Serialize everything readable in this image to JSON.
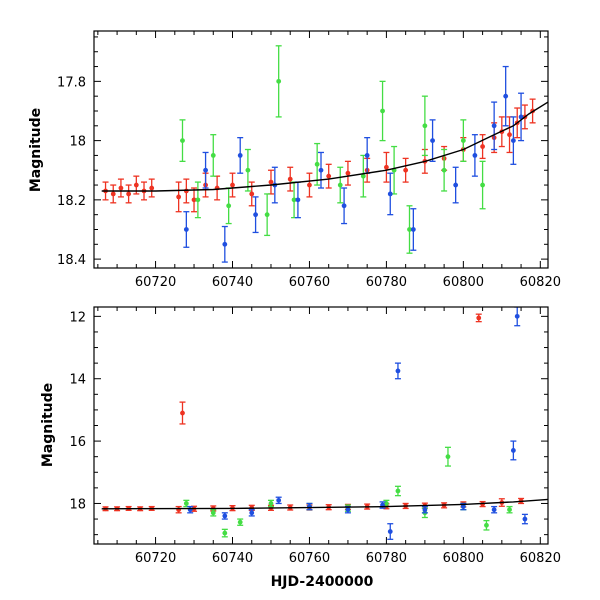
{
  "chart_data": [
    {
      "type": "scatter",
      "title": "",
      "xlabel": "",
      "ylabel": "Magnitude",
      "xlim": [
        60704,
        60822
      ],
      "ylim": [
        18.43,
        17.63
      ],
      "y_inverted": true,
      "xticks": [
        60720,
        60740,
        60760,
        60780,
        60800,
        60820
      ],
      "yticks": [
        17.8,
        18,
        18.2,
        18.4
      ],
      "ytick_labels": [
        "17.8",
        "18",
        "18.2",
        "18.4"
      ],
      "grid": false,
      "colors": {
        "red": "#ee3322",
        "green": "#44dd44",
        "blue": "#1f4fe0",
        "model": "#000000"
      },
      "model_curve": {
        "x": [
          60706,
          60720,
          60735,
          60750,
          60765,
          60780,
          60790,
          60800,
          60808,
          60813,
          60817,
          60822
        ],
        "y": [
          18.17,
          18.17,
          18.165,
          18.15,
          18.13,
          18.1,
          18.07,
          18.03,
          17.98,
          17.95,
          17.91,
          17.87
        ]
      },
      "series": [
        {
          "color": "red",
          "x": [
            60707,
            60709,
            60711,
            60713,
            60715,
            60717,
            60719,
            60726,
            60728,
            60730,
            60733,
            60736,
            60740,
            60745,
            60750,
            60755,
            60760,
            60765,
            60770,
            60775,
            60780,
            60785,
            60790,
            60795,
            60800,
            60805,
            60808,
            60810,
            60812,
            60814,
            60816,
            60818
          ],
          "y": [
            18.17,
            18.18,
            18.16,
            18.18,
            18.15,
            18.17,
            18.16,
            18.19,
            18.17,
            18.2,
            18.15,
            18.16,
            18.15,
            18.18,
            18.14,
            18.13,
            18.15,
            18.12,
            18.11,
            18.1,
            18.09,
            18.1,
            18.07,
            18.06,
            18.03,
            18.02,
            17.99,
            17.97,
            17.98,
            17.94,
            17.92,
            17.9
          ],
          "err": [
            0.03,
            0.03,
            0.03,
            0.03,
            0.03,
            0.03,
            0.03,
            0.05,
            0.04,
            0.04,
            0.04,
            0.04,
            0.04,
            0.04,
            0.04,
            0.04,
            0.04,
            0.04,
            0.04,
            0.04,
            0.05,
            0.04,
            0.04,
            0.04,
            0.04,
            0.04,
            0.05,
            0.05,
            0.06,
            0.05,
            0.04,
            0.04
          ]
        },
        {
          "color": "green",
          "x": [
            60727,
            60731,
            60735,
            60739,
            60744,
            60749,
            60752,
            60756,
            60762,
            60768,
            60774,
            60779,
            60782,
            60786,
            60790,
            60795,
            60800,
            60805
          ],
          "y": [
            18.0,
            18.2,
            18.05,
            18.22,
            18.1,
            18.25,
            17.8,
            18.2,
            18.08,
            18.15,
            18.12,
            17.9,
            18.1,
            18.3,
            17.95,
            18.1,
            18.0,
            18.15
          ],
          "err": [
            0.07,
            0.06,
            0.07,
            0.06,
            0.07,
            0.07,
            0.12,
            0.06,
            0.07,
            0.06,
            0.07,
            0.1,
            0.08,
            0.08,
            0.1,
            0.07,
            0.07,
            0.08
          ]
        },
        {
          "color": "blue",
          "x": [
            60728,
            60733,
            60738,
            60742,
            60746,
            60751,
            60757,
            60763,
            60769,
            60775,
            60781,
            60787,
            60792,
            60798,
            60803,
            60808,
            60811,
            60813,
            60815
          ],
          "y": [
            18.3,
            18.1,
            18.35,
            18.05,
            18.25,
            18.15,
            18.2,
            18.1,
            18.22,
            18.05,
            18.18,
            18.3,
            18.0,
            18.15,
            18.05,
            17.95,
            17.85,
            18.0,
            17.92
          ],
          "err": [
            0.06,
            0.06,
            0.06,
            0.06,
            0.06,
            0.06,
            0.06,
            0.06,
            0.06,
            0.06,
            0.07,
            0.07,
            0.07,
            0.06,
            0.07,
            0.08,
            0.1,
            0.08,
            0.08
          ]
        }
      ]
    },
    {
      "type": "scatter",
      "title": "",
      "xlabel": "HJD-2400000",
      "ylabel": "Magnitude",
      "xlim": [
        60704,
        60822
      ],
      "ylim": [
        19.3,
        11.7
      ],
      "y_inverted": true,
      "xticks": [
        60720,
        60740,
        60760,
        60780,
        60800,
        60820
      ],
      "yticks": [
        12,
        14,
        16,
        18
      ],
      "ytick_labels": [
        "12",
        "14",
        "16",
        "18"
      ],
      "grid": false,
      "colors": {
        "red": "#ee3322",
        "green": "#44dd44",
        "blue": "#1f4fe0",
        "model": "#000000"
      },
      "model_curve": {
        "x": [
          60706,
          60740,
          60780,
          60800,
          60813,
          60822
        ],
        "y": [
          18.17,
          18.16,
          18.1,
          18.03,
          17.95,
          17.87
        ]
      },
      "series": [
        {
          "color": "red",
          "x": [
            60707,
            60710,
            60713,
            60716,
            60719,
            60726,
            60727,
            60730,
            60735,
            60740,
            60745,
            60750,
            60755,
            60760,
            60765,
            60770,
            60775,
            60780,
            60785,
            60790,
            60795,
            60800,
            60804,
            60805,
            60810,
            60815
          ],
          "y": [
            18.17,
            18.17,
            18.16,
            18.17,
            18.16,
            18.2,
            15.1,
            18.17,
            18.16,
            18.15,
            18.14,
            18.14,
            18.13,
            18.13,
            18.12,
            18.11,
            18.1,
            18.09,
            18.08,
            18.07,
            18.06,
            18.03,
            12.05,
            18.02,
            17.97,
            17.92
          ],
          "err": [
            0.06,
            0.06,
            0.06,
            0.06,
            0.06,
            0.1,
            0.35,
            0.08,
            0.08,
            0.08,
            0.08,
            0.08,
            0.08,
            0.08,
            0.08,
            0.08,
            0.08,
            0.08,
            0.08,
            0.08,
            0.08,
            0.08,
            0.12,
            0.08,
            0.12,
            0.08
          ]
        },
        {
          "color": "green",
          "x": [
            60728,
            60735,
            60738,
            60742,
            60750,
            60760,
            60770,
            60780,
            60783,
            60790,
            60796,
            60800,
            60806,
            60812
          ],
          "y": [
            18.0,
            18.3,
            18.95,
            18.6,
            18.0,
            18.1,
            18.15,
            18.0,
            17.6,
            18.3,
            16.5,
            18.1,
            18.7,
            18.2
          ],
          "err": [
            0.1,
            0.1,
            0.12,
            0.1,
            0.1,
            0.1,
            0.1,
            0.1,
            0.15,
            0.15,
            0.3,
            0.1,
            0.15,
            0.1
          ]
        },
        {
          "color": "blue",
          "x": [
            60729,
            60738,
            60745,
            60752,
            60760,
            60770,
            60779,
            60781,
            60783,
            60790,
            60800,
            60808,
            60813,
            60814,
            60816
          ],
          "y": [
            18.2,
            18.4,
            18.3,
            17.9,
            18.1,
            18.2,
            18.05,
            18.9,
            13.75,
            18.2,
            18.1,
            18.2,
            16.3,
            12.0,
            18.5
          ],
          "err": [
            0.1,
            0.1,
            0.1,
            0.1,
            0.1,
            0.1,
            0.1,
            0.25,
            0.25,
            0.1,
            0.1,
            0.1,
            0.3,
            0.3,
            0.15
          ]
        }
      ]
    }
  ]
}
